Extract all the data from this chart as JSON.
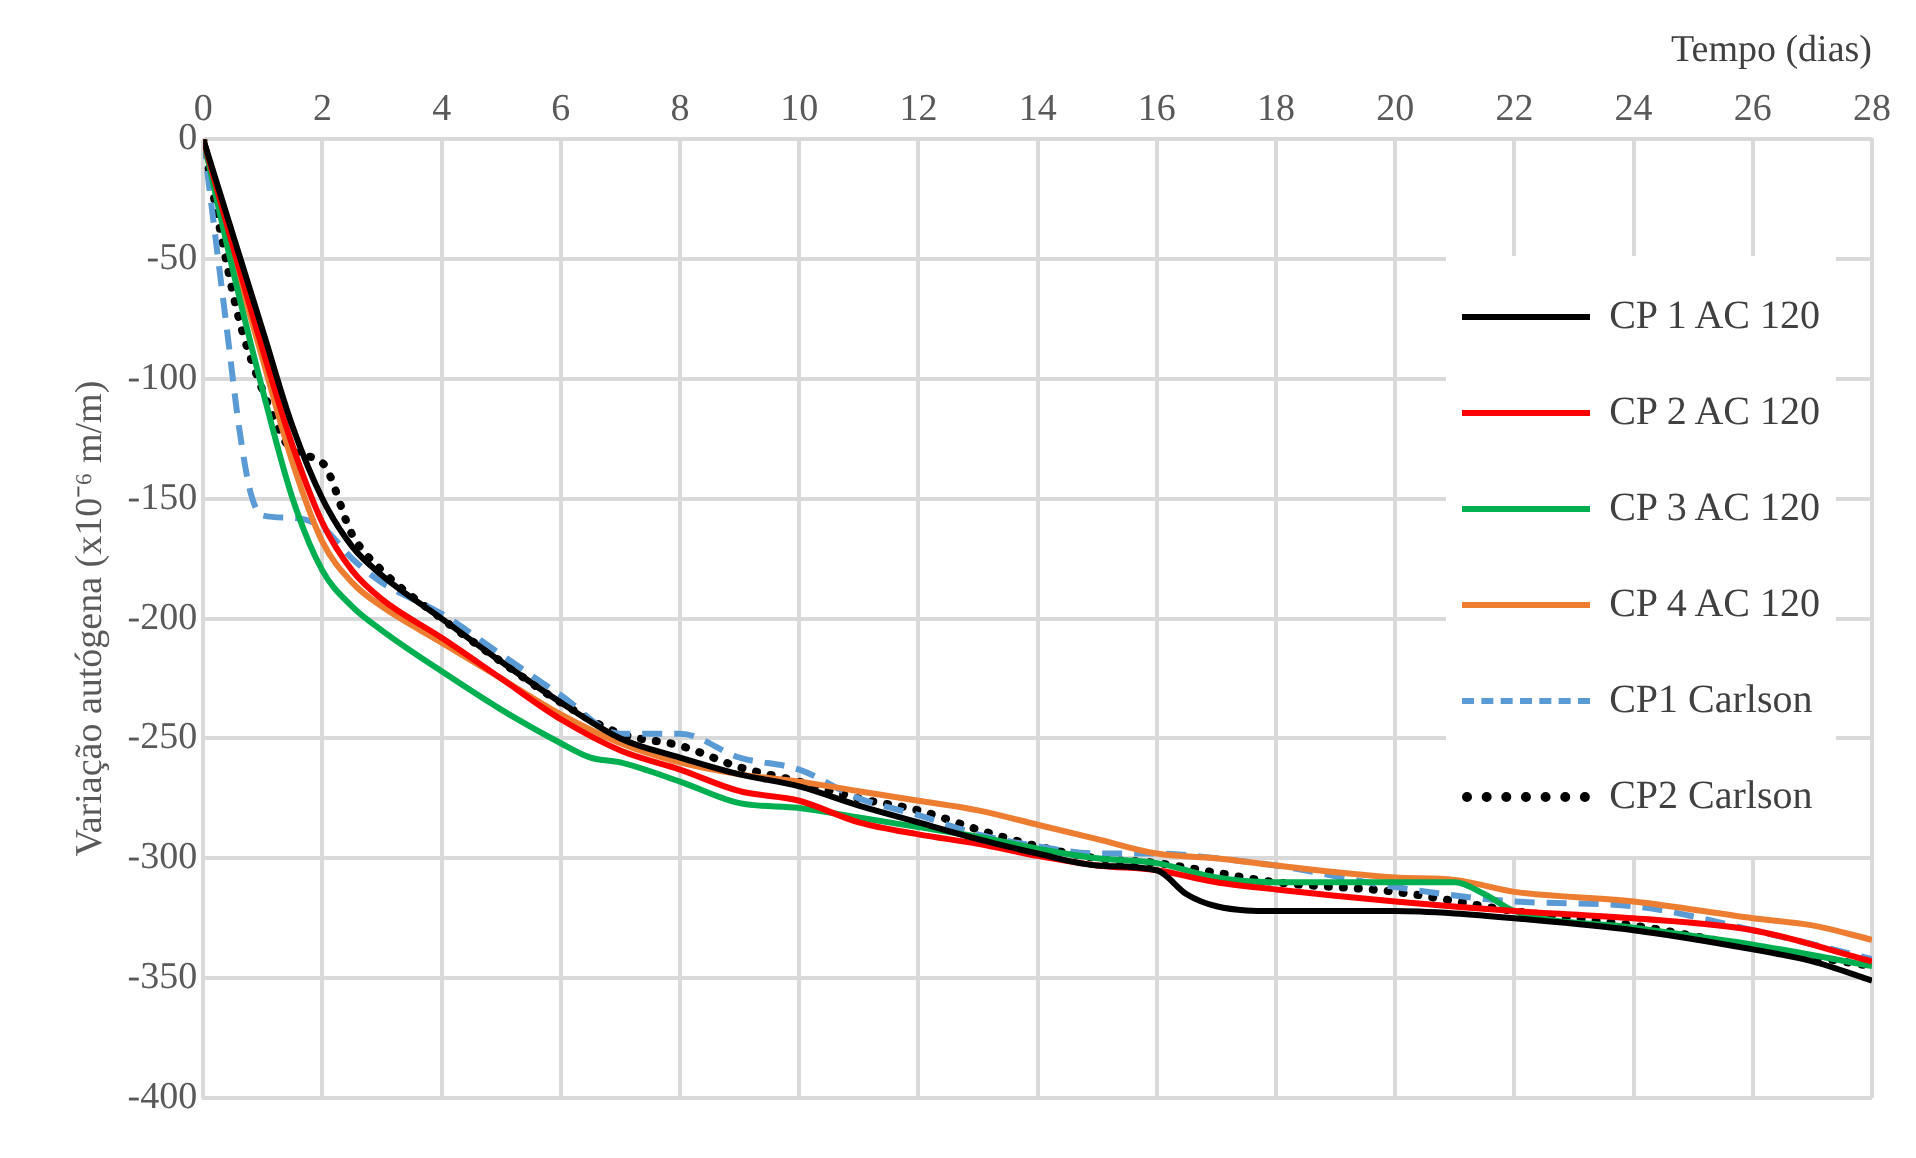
{
  "chart_data": {
    "type": "line",
    "xlabel": "Tempo (dias)",
    "ylabel": "Variação autógena (x10⁻⁶ m/m)",
    "xlim": [
      0,
      28
    ],
    "xticks": [
      0,
      2,
      4,
      6,
      8,
      10,
      12,
      14,
      16,
      18,
      20,
      22,
      24,
      26,
      28
    ],
    "ylim": [
      -400,
      0
    ],
    "yticks": [
      -400,
      -350,
      -300,
      -250,
      -200,
      -150,
      -100,
      -50,
      0
    ],
    "grid": true,
    "legend": "right",
    "marker": "none",
    "series": [
      {
        "name": "CP 1 AC 120",
        "color": "#000000",
        "line_style": "solid",
        "x": [
          0,
          0.5,
          1,
          1.5,
          2,
          2.5,
          3,
          4,
          5,
          6,
          7,
          8,
          9,
          10,
          11,
          12,
          13,
          14,
          15,
          16,
          16.5,
          17,
          18,
          20,
          21,
          22,
          24,
          26,
          27,
          28
        ],
        "values": [
          0,
          -40,
          -80,
          -120,
          -150,
          -170,
          -182,
          -200,
          -218,
          -235,
          -250,
          -258,
          -265,
          -270,
          -278,
          -285,
          -292,
          -298,
          -303,
          -305,
          -315,
          -320,
          -322,
          -322,
          -323,
          -325,
          -330,
          -338,
          -343,
          -351
        ]
      },
      {
        "name": "CP 2 AC 120",
        "color": "#ff0000",
        "line_style": "solid",
        "x": [
          0,
          0.5,
          1,
          1.5,
          2,
          2.5,
          3,
          4,
          5,
          6,
          7,
          8,
          9,
          10,
          11,
          12,
          13,
          14,
          15,
          16,
          17,
          18,
          20,
          22,
          24,
          26,
          28
        ],
        "values": [
          0,
          -45,
          -88,
          -128,
          -160,
          -180,
          -192,
          -208,
          -225,
          -242,
          -255,
          -263,
          -272,
          -276,
          -285,
          -290,
          -294,
          -299,
          -303,
          -305,
          -310,
          -313,
          -318,
          -322,
          -325,
          -330,
          -343
        ]
      },
      {
        "name": "CP 3 AC 120",
        "color": "#00b050",
        "line_style": "solid",
        "x": [
          0,
          0.5,
          1,
          1.5,
          2,
          2.5,
          3,
          4,
          5,
          6,
          6.5,
          7,
          8,
          9,
          10,
          11,
          12,
          13,
          14,
          15,
          16,
          17,
          18,
          20,
          21,
          21.5,
          22,
          24,
          26,
          28
        ],
        "values": [
          0,
          -55,
          -105,
          -150,
          -180,
          -195,
          -205,
          -222,
          -238,
          -252,
          -258,
          -260,
          -268,
          -277,
          -279,
          -283,
          -287,
          -291,
          -296,
          -300,
          -302,
          -308,
          -310,
          -310,
          -310,
          -315,
          -322,
          -329,
          -336,
          -345
        ]
      },
      {
        "name": "CP 4 AC 120",
        "color": "#ed7d31",
        "line_style": "solid",
        "x": [
          0,
          0.5,
          1,
          1.5,
          2,
          2.5,
          3,
          4,
          5,
          6,
          7,
          8,
          9,
          10,
          11,
          12,
          13,
          14,
          15,
          16,
          17,
          18,
          20,
          21,
          22,
          24,
          26,
          27,
          28
        ],
        "values": [
          0,
          -48,
          -92,
          -135,
          -168,
          -185,
          -195,
          -210,
          -225,
          -240,
          -252,
          -260,
          -265,
          -268,
          -272,
          -276,
          -280,
          -286,
          -292,
          -298,
          -300,
          -303,
          -308,
          -309,
          -314,
          -318,
          -325,
          -328,
          -334
        ]
      },
      {
        "name": "CP1 Carlson",
        "color": "#5b9bd5",
        "line_style": "dashed",
        "x": [
          0,
          0.2,
          0.4,
          0.6,
          0.8,
          1,
          1.5,
          2,
          2.5,
          3,
          4,
          5,
          6,
          7,
          8,
          9,
          10,
          11,
          12,
          13,
          14,
          15,
          16,
          17,
          18,
          20,
          22,
          24,
          26,
          28
        ],
        "values": [
          0,
          -40,
          -80,
          -120,
          -148,
          -157,
          -158,
          -162,
          -175,
          -185,
          -198,
          -215,
          -232,
          -248,
          -248,
          -258,
          -263,
          -275,
          -282,
          -290,
          -295,
          -298,
          -298,
          -300,
          -303,
          -312,
          -318,
          -320,
          -330,
          -342
        ]
      },
      {
        "name": "CP2 Carlson",
        "color": "#000000",
        "line_style": "dotted",
        "x": [
          0,
          0.3,
          0.6,
          1,
          1.5,
          2,
          2.5,
          3,
          4,
          5,
          6,
          7,
          8,
          9,
          10,
          11,
          12,
          13,
          14,
          15,
          16,
          17,
          18,
          20,
          22,
          24,
          26,
          28
        ],
        "values": [
          0,
          -40,
          -75,
          -105,
          -130,
          -135,
          -165,
          -180,
          -200,
          -218,
          -235,
          -248,
          -253,
          -262,
          -268,
          -275,
          -280,
          -288,
          -295,
          -300,
          -302,
          -306,
          -310,
          -314,
          -322,
          -328,
          -337,
          -345
        ]
      }
    ]
  }
}
